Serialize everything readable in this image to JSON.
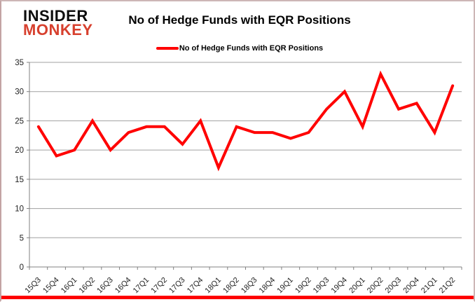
{
  "brand": {
    "line1": "INSIDER",
    "line2": "MONKEY",
    "line1_color": "#0d0d0d",
    "line2_color": "#d7402e"
  },
  "header": {
    "title": "No of Hedge Funds with EQR Positions"
  },
  "legend": {
    "label": "No of Hedge Funds with EQR Positions",
    "swatch_color": "#ff0000"
  },
  "frame": {
    "bottom_bar_color": "#fe0000"
  },
  "chart_data": {
    "type": "line",
    "title": "No of Hedge Funds with EQR Positions",
    "categories": [
      "15Q3",
      "15Q4",
      "16Q1",
      "16Q2",
      "16Q3",
      "16Q4",
      "17Q1",
      "17Q2",
      "17Q3",
      "17Q4",
      "18Q1",
      "18Q2",
      "18Q3",
      "18Q4",
      "19Q1",
      "19Q2",
      "19Q3",
      "19Q4",
      "20Q1",
      "20Q2",
      "20Q3",
      "20Q4",
      "21Q1",
      "21Q2"
    ],
    "series": [
      {
        "name": "No of Hedge Funds with EQR Positions",
        "color": "#ff0000",
        "values": [
          24,
          19,
          20,
          25,
          20,
          23,
          24,
          24,
          21,
          25,
          17,
          24,
          23,
          23,
          22,
          23,
          27,
          30,
          24,
          33,
          27,
          28,
          23,
          31
        ]
      }
    ],
    "xlabel": "",
    "ylabel": "",
    "ylim": [
      0,
      35
    ],
    "ytick_step": 5,
    "grid": true,
    "grid_color": "#a0a0a0",
    "axis_color": "#808080",
    "tick_label_color": "#1f1f1f",
    "legend_position": "top"
  }
}
